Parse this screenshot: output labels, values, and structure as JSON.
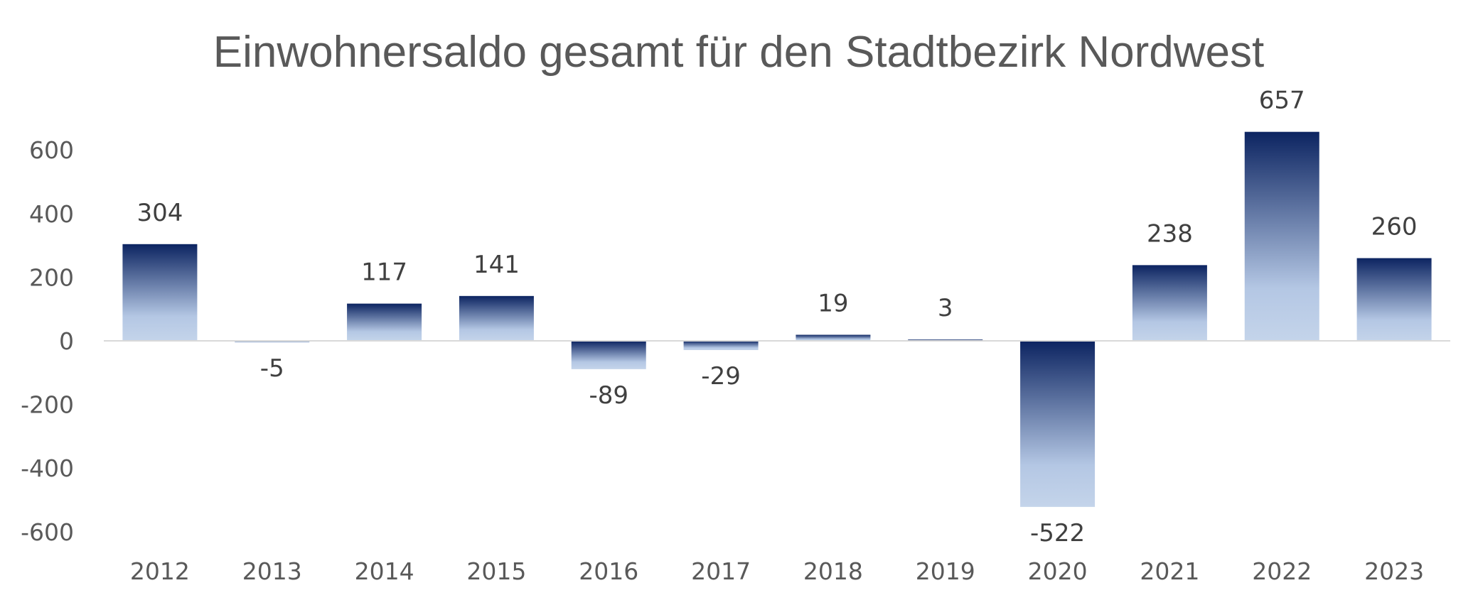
{
  "chart_data": {
    "type": "bar",
    "title": "Einwohnersaldo gesamt für den Stadtbezirk Nordwest",
    "xlabel": "",
    "ylabel": "",
    "categories": [
      "2012",
      "2013",
      "2014",
      "2015",
      "2016",
      "2017",
      "2018",
      "2019",
      "2020",
      "2021",
      "2022",
      "2023"
    ],
    "values": [
      304,
      -5,
      117,
      141,
      -89,
      -29,
      19,
      3,
      -522,
      238,
      657,
      260
    ],
    "data_labels": [
      "304",
      "-5",
      "117",
      "141",
      "-89",
      "-29",
      "19",
      "3",
      "-522",
      "238",
      "657",
      "260"
    ],
    "ylim": [
      -600,
      600
    ],
    "yticks": [
      600,
      400,
      200,
      0,
      -200,
      -400,
      -600
    ],
    "ytick_labels": [
      "600",
      "400",
      "200",
      "0",
      "-200",
      "-400",
      "-600"
    ],
    "grid": false,
    "legend": "none",
    "colors": {
      "bar_dark": "#0c2461",
      "bar_light": "#bccde6",
      "axis": "#d9d9d9",
      "text": "#595959",
      "label": "#404040"
    }
  }
}
